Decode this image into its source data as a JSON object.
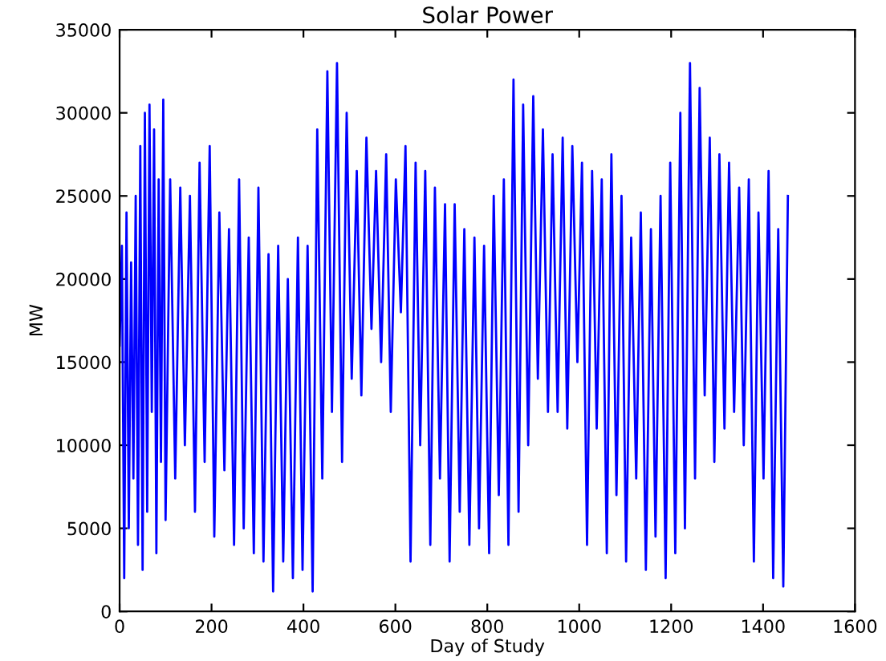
{
  "chart_data": {
    "type": "line",
    "title": "Solar Power",
    "xlabel": "Day of Study",
    "ylabel": "MW",
    "x": [
      0,
      5,
      10,
      15,
      20,
      25,
      30,
      35,
      40,
      45,
      50,
      55,
      60,
      65,
      70,
      75,
      80,
      85,
      90,
      95,
      100,
      110,
      121,
      132,
      142,
      153,
      164,
      174,
      185,
      196,
      206,
      217,
      228,
      238,
      249,
      260,
      270,
      281,
      292,
      302,
      313,
      324,
      334,
      345,
      356,
      366,
      377,
      388,
      398,
      409,
      420,
      430,
      441,
      452,
      462,
      473,
      484,
      494,
      505,
      516,
      526,
      537,
      548,
      558,
      569,
      580,
      590,
      601,
      612,
      622,
      633,
      644,
      654,
      665,
      676,
      686,
      697,
      708,
      718,
      729,
      740,
      750,
      761,
      772,
      782,
      793,
      804,
      814,
      825,
      836,
      846,
      857,
      868,
      878,
      889,
      900,
      910,
      921,
      932,
      942,
      953,
      964,
      974,
      985,
      996,
      1006,
      1017,
      1028,
      1038,
      1049,
      1060,
      1070,
      1081,
      1092,
      1102,
      1113,
      1124,
      1134,
      1145,
      1156,
      1166,
      1177,
      1188,
      1198,
      1209,
      1220,
      1230,
      1241,
      1252,
      1262,
      1273,
      1284,
      1294,
      1305,
      1316,
      1326,
      1337,
      1348,
      1358,
      1369,
      1380,
      1390,
      1401,
      1412,
      1422,
      1433,
      1444,
      1454
    ],
    "series": [
      {
        "color": "#0000ff",
        "values": [
          16000,
          22000,
          2000,
          24000,
          5000,
          21000,
          8000,
          25000,
          4000,
          28000,
          2500,
          30000,
          6000,
          30500,
          12000,
          29000,
          3500,
          26000,
          9000,
          30800,
          5500,
          26000,
          8000,
          25500,
          10000,
          25000,
          6000,
          27000,
          9000,
          28000,
          4500,
          24000,
          8500,
          23000,
          4000,
          26000,
          5000,
          22500,
          3500,
          25500,
          3000,
          21500,
          1200,
          22000,
          3000,
          20000,
          2000,
          22500,
          2500,
          22000,
          1200,
          29000,
          8000,
          32500,
          12000,
          33000,
          9000,
          30000,
          14000,
          26500,
          13000,
          28500,
          17000,
          26500,
          15000,
          27500,
          12000,
          26000,
          18000,
          28000,
          3000,
          27000,
          10000,
          26500,
          4000,
          25500,
          8000,
          24500,
          3000,
          24500,
          6000,
          23000,
          4000,
          22500,
          5000,
          22000,
          3500,
          25000,
          7000,
          26000,
          4000,
          32000,
          6000,
          30500,
          10000,
          31000,
          14000,
          29000,
          12000,
          27500,
          12000,
          28500,
          11000,
          28000,
          15000,
          27000,
          4000,
          26500,
          11000,
          26000,
          3500,
          27500,
          7000,
          25000,
          3000,
          22500,
          8000,
          24000,
          2500,
          23000,
          4500,
          25000,
          2000,
          27000,
          3500,
          30000,
          5000,
          33000,
          8000,
          31500,
          13000,
          28500,
          9000,
          27500,
          11000,
          27000,
          12000,
          25500,
          10000,
          26000,
          3000,
          24000,
          8000,
          26500,
          2000,
          23000,
          1500,
          25000
        ]
      }
    ],
    "xlim": [
      0,
      1600
    ],
    "xticks": [
      0,
      200,
      400,
      600,
      800,
      1000,
      1200,
      1400,
      1600
    ],
    "ylim": [
      0,
      35000
    ],
    "yticks": [
      0,
      5000,
      10000,
      15000,
      20000,
      25000,
      30000,
      35000
    ],
    "grid": false,
    "legend": false,
    "marker": "none",
    "line_style": "solid"
  }
}
